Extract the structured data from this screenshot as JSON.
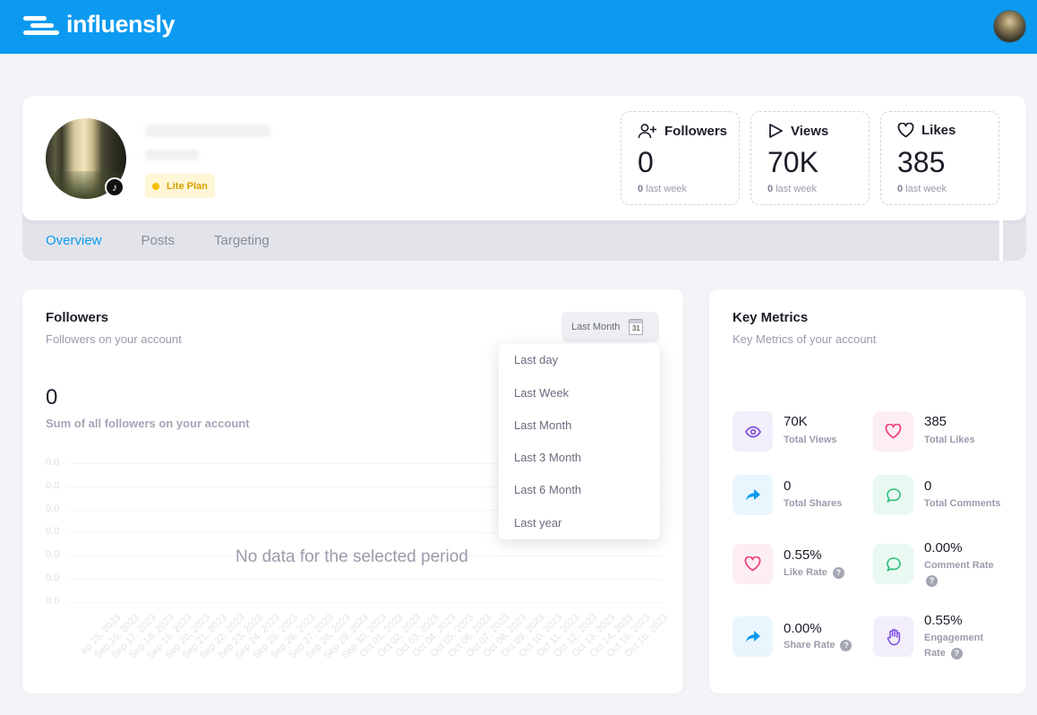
{
  "app": {
    "name": "influensly"
  },
  "profile": {
    "plan": "Lite Plan",
    "stats": [
      {
        "title": "Followers",
        "value": "0",
        "sub_value": "0",
        "sub_text": "last week",
        "icon": "user-plus-icon"
      },
      {
        "title": "Views",
        "value": "70K",
        "sub_value": "0",
        "sub_text": "last week",
        "icon": "play-icon"
      },
      {
        "title": "Likes",
        "value": "385",
        "sub_value": "0",
        "sub_text": "last week",
        "icon": "heart-icon"
      }
    ]
  },
  "tabs": [
    "Overview",
    "Posts",
    "Targeting"
  ],
  "followers_card": {
    "title": "Followers",
    "subtitle": "Followers on your account",
    "period": "Last Month",
    "calendar_day": "31",
    "total": "0",
    "total_caption": "Sum of all followers on your account",
    "no_data": "No data for the selected period",
    "dropdown_options": [
      "Last day",
      "Last Week",
      "Last Month",
      "Last 3 Month",
      "Last 6 Month",
      "Last year"
    ]
  },
  "chart_data": {
    "type": "line",
    "x": [
      "ep 15, 2023",
      "Sep 16, 2023",
      "Sep 17, 2023",
      "Sep 18, 2023",
      "Sep 19, 2023",
      "Sep 20, 2023",
      "Sep 21, 2023",
      "Sep 22, 2023",
      "Sep 23, 2023",
      "Sep 24, 2023",
      "Sep 25, 2023",
      "Sep 26, 2023",
      "Sep 27, 2023",
      "Sep 28, 2023",
      "Sep 29, 2023",
      "Sep 30, 2023",
      "Oct 01, 2023",
      "Oct 02, 2023",
      "Oct 03, 2023",
      "Oct 04, 2023",
      "Oct 05, 2023",
      "Oct 06, 2023",
      "Oct 07, 2023",
      "Oct 08, 2023",
      "Oct 09, 2023",
      "Oct 10, 2023",
      "Oct 11, 2023",
      "Oct 12, 2023",
      "Oct 13, 2023",
      "Oct 14, 2023",
      "Oct 15, 2023",
      "Oct 16, 2023"
    ],
    "yticks": [
      "0.0",
      "0.0",
      "0.0",
      "0.0",
      "0.0",
      "0.0",
      "0.0"
    ],
    "series": []
  },
  "key_metrics": {
    "title": "Key Metrics",
    "subtitle": "Key Metrics of your account",
    "items": [
      {
        "value": "70K",
        "label": "Total Views",
        "icon": "eye-icon",
        "color": "#7c4dde",
        "bg": "#f3eefc"
      },
      {
        "value": "385",
        "label": "Total Likes",
        "icon": "heart-icon",
        "color": "#f0427a",
        "bg": "#fdeef3"
      },
      {
        "value": "0",
        "label": "Total Shares",
        "icon": "share-arrow-icon",
        "color": "#0c9af0",
        "bg": "#eaf6fd"
      },
      {
        "value": "0",
        "label": "Total Comments",
        "icon": "comment-icon",
        "color": "#2bbf7a",
        "bg": "#e9f9f1"
      },
      {
        "value": "0.55%",
        "label": "Like Rate",
        "icon": "heart-icon",
        "color": "#f0427a",
        "bg": "#fdeef3"
      },
      {
        "value": "0.00%",
        "label": "Comment Rate",
        "icon": "comment-icon",
        "color": "#2bbf7a",
        "bg": "#e9f9f1"
      },
      {
        "value": "0.00%",
        "label": "Share Rate",
        "icon": "share-arrow-icon",
        "color": "#0c9af0",
        "bg": "#eaf6fd"
      },
      {
        "value": "0.55%",
        "label": "Engagement Rate",
        "label_line1": "Engagement",
        "label_line2": "Rate",
        "icon": "hand-icon",
        "color": "#7c4dde",
        "bg": "#f3eefc"
      }
    ],
    "help_symbol": "?"
  },
  "colors": {
    "brand": "#0c9af0",
    "plan": "#f5c000"
  }
}
